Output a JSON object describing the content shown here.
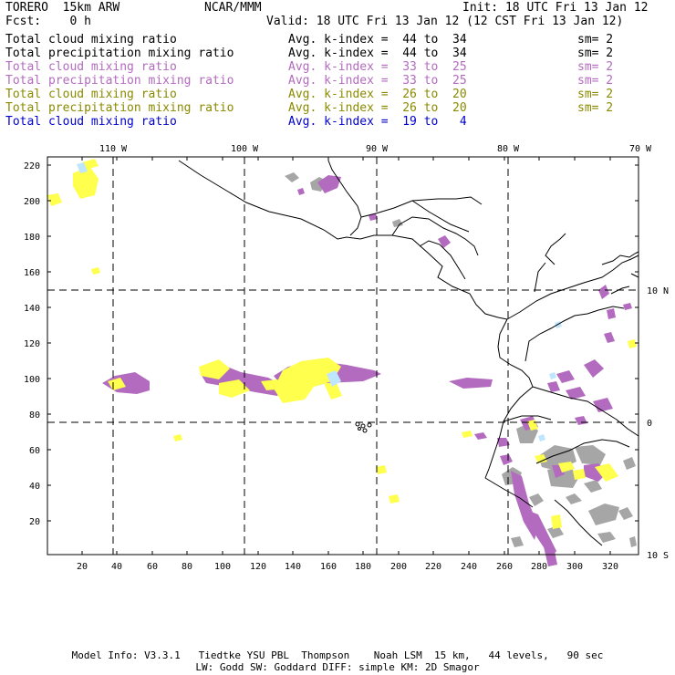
{
  "header": {
    "model_name": "TORERO  15km ARW",
    "org": "NCAR/MMM",
    "init": "Init: 18 UTC Fri 13 Jan 12",
    "fcst": "Fcst:    0 h",
    "valid": "Valid: 18 UTC Fri 13 Jan 12 (12 CST Fri 13 Jan 12)"
  },
  "legend_rows": [
    {
      "field": "Total cloud mixing ratio",
      "kindex": "Avg. k-index =  44 to  34",
      "sm": "sm= 2",
      "color": "#000000"
    },
    {
      "field": "Total precipitation mixing ratio",
      "kindex": "Avg. k-index =  44 to  34",
      "sm": "sm= 2",
      "color": "#000000"
    },
    {
      "field": "Total cloud mixing ratio",
      "kindex": "Avg. k-index =  33 to  25",
      "sm": "sm= 2",
      "color": "#b36bbf"
    },
    {
      "field": "Total precipitation mixing ratio",
      "kindex": "Avg. k-index =  33 to  25",
      "sm": "sm= 2",
      "color": "#b36bbf"
    },
    {
      "field": "Total cloud mixing ratio",
      "kindex": "Avg. k-index =  26 to  20",
      "sm": "sm= 2",
      "color": "#8a8a00"
    },
    {
      "field": "Total precipitation mixing ratio",
      "kindex": "Avg. k-index =  26 to  20",
      "sm": "sm= 2",
      "color": "#8a8a00"
    },
    {
      "field": "Total cloud mixing ratio",
      "kindex": "Avg. k-index =  19 to   4",
      "sm": "",
      "color": "#0000d0"
    }
  ],
  "map": {
    "lon_labels": [
      "110 W",
      "100 W",
      "90 W",
      "80 W",
      "70 W"
    ],
    "lat_labels": [
      "10 N",
      "0",
      "10 S"
    ],
    "y_ticks": [
      "220",
      "200",
      "180",
      "160",
      "140",
      "120",
      "100",
      "80",
      "60",
      "40",
      "20"
    ],
    "x_ticks": [
      "20",
      "40",
      "60",
      "80",
      "100",
      "120",
      "140",
      "160",
      "180",
      "200",
      "220",
      "240",
      "260",
      "280",
      "300",
      "320"
    ],
    "colors": {
      "gray": "#a6a6a6",
      "purple": "#b36bbf",
      "yellow": "#ffff4d",
      "lightblue": "#bfe6ff"
    }
  },
  "footer": {
    "line1": "Model Info: V3.3.1   Tiedtke YSU PBL  Thompson    Noah LSM  15 km,   44 levels,   90 sec",
    "line2": "LW: Godd SW: Goddard DIFF: simple KM: 2D Smagor"
  }
}
